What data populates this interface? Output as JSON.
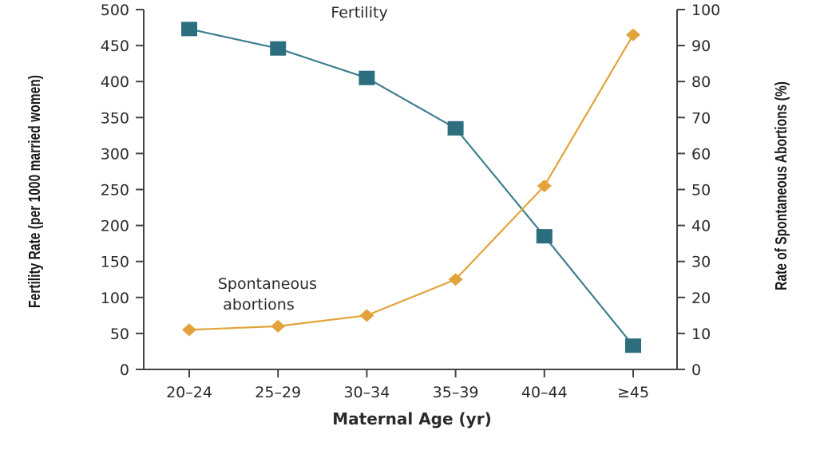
{
  "chart_data": {
    "type": "line",
    "categories": [
      "20–24",
      "25–29",
      "30–34",
      "35–39",
      "40–44",
      "≥45"
    ],
    "xlabel": "Maternal Age (yr)",
    "ylabel_left": "Fertility Rate (per 1000 married women)",
    "ylabel_right": "Rate of Spontaneous Abortions (%)",
    "ylim_left": [
      0,
      500
    ],
    "yticks_left": [
      0,
      50,
      100,
      150,
      200,
      250,
      300,
      350,
      400,
      450,
      500
    ],
    "ylim_right": [
      0,
      100
    ],
    "yticks_right": [
      0,
      10,
      20,
      30,
      40,
      50,
      60,
      70,
      80,
      90,
      100
    ],
    "grid": false,
    "series": [
      {
        "name": "Fertility",
        "axis": "left",
        "marker": "square",
        "color": "#3f7f8f",
        "values": [
          473,
          446,
          405,
          335,
          185,
          33
        ]
      },
      {
        "name": "Spontaneous abortions",
        "label_lines": [
          "Spontaneous",
          "abortions"
        ],
        "axis": "right",
        "marker": "diamond",
        "color": "#e2a33a",
        "values": [
          11,
          12,
          15,
          25,
          51,
          93
        ]
      }
    ]
  }
}
